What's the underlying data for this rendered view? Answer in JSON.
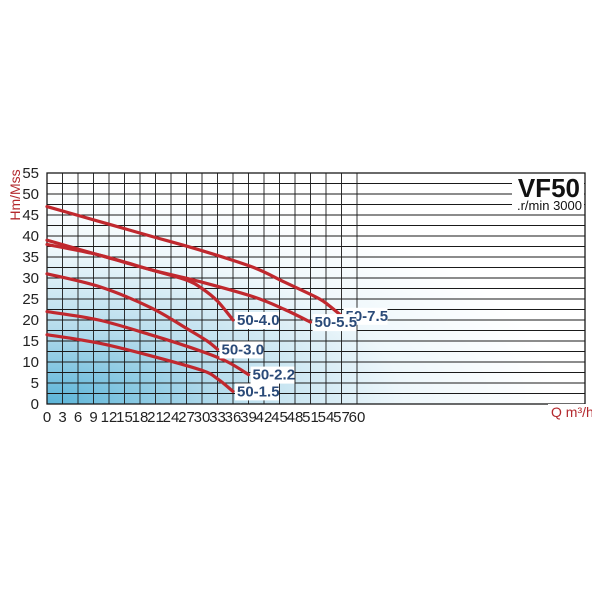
{
  "chart_data": {
    "type": "line",
    "title": "VF50",
    "subtitle": ".r/min 3000",
    "xlabel": "Q m³/h",
    "ylabel": "Hm/Mss",
    "xlim": [
      0,
      63
    ],
    "ylim": [
      0,
      55
    ],
    "x_ticks": [
      0,
      3,
      6,
      9,
      12,
      15,
      18,
      21,
      24,
      27,
      30,
      33,
      36,
      39,
      42,
      45,
      48,
      51,
      54,
      57,
      60
    ],
    "y_ticks": [
      0,
      5,
      10,
      15,
      20,
      25,
      30,
      35,
      40,
      45,
      50,
      55
    ],
    "grid": true,
    "colors": {
      "curve": "#c0282e",
      "label": "#2a4a78",
      "axis_title": "#b3282d",
      "grid": "#1a1a1a",
      "gradient_start": "#5ab4d8"
    },
    "series": [
      {
        "name": "50-7.5",
        "x": [
          0,
          10,
          20,
          30,
          40,
          46,
          52,
          54,
          57
        ],
        "y": [
          47,
          43.5,
          40,
          36.5,
          32.5,
          29,
          25.5,
          24,
          21
        ]
      },
      {
        "name": "50-5.5",
        "x": [
          0,
          10,
          20,
          30,
          40,
          46,
          51
        ],
        "y": [
          39,
          35.5,
          32,
          29,
          25.5,
          22.5,
          19.5
        ]
      },
      {
        "name": "50-4.0",
        "x": [
          0,
          10,
          20,
          27,
          30,
          33,
          36
        ],
        "y": [
          38,
          35.5,
          32,
          29.5,
          27.5,
          24.5,
          20
        ]
      },
      {
        "name": "50-3.0",
        "x": [
          0,
          10,
          20,
          27,
          31,
          33
        ],
        "y": [
          31,
          28,
          23,
          18,
          15,
          13
        ]
      },
      {
        "name": "50-2.2",
        "x": [
          0,
          10,
          20,
          30,
          35,
          39
        ],
        "y": [
          22,
          20,
          16.5,
          12.5,
          10,
          7
        ]
      },
      {
        "name": "50-1.5",
        "x": [
          0,
          10,
          20,
          30,
          33,
          36
        ],
        "y": [
          16.5,
          14.5,
          11.5,
          8,
          6,
          3
        ]
      }
    ]
  }
}
